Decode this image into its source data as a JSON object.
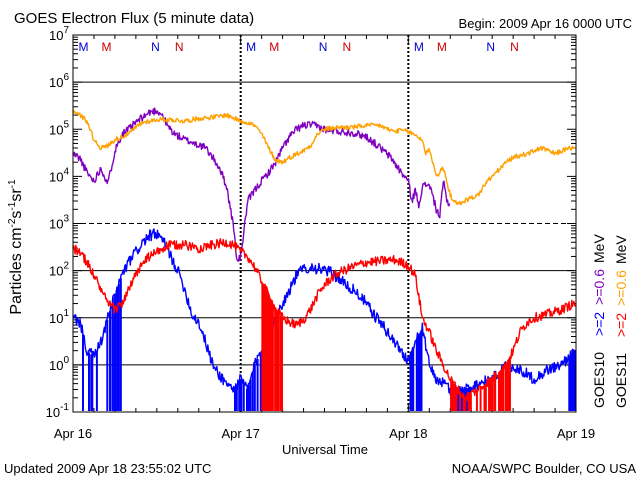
{
  "chart_data": {
    "type": "line",
    "title": "GOES Electron Flux (5 minute data)",
    "begin_label": "Begin: 2009 Apr 16 0000 UTC",
    "xlabel": "Universal Time",
    "ylabel": "Particles cm⁻²s⁻¹sr⁻¹",
    "ylabel_parts": {
      "base": "Particles cm",
      "sup1": "-2",
      "mid": "s",
      "sup2": "-1",
      "mid2": "sr",
      "sup3": "-1"
    },
    "yscale": "log",
    "ylim": [
      0.1,
      10000000
    ],
    "y_ticks": [
      {
        "value": 0.1,
        "base": "10",
        "exp": "-1"
      },
      {
        "value": 1,
        "base": "10",
        "exp": "0"
      },
      {
        "value": 10,
        "base": "10",
        "exp": "1"
      },
      {
        "value": 100,
        "base": "10",
        "exp": "2"
      },
      {
        "value": 1000,
        "base": "10",
        "exp": "3"
      },
      {
        "value": 10000,
        "base": "10",
        "exp": "4"
      },
      {
        "value": 100000,
        "base": "10",
        "exp": "5"
      },
      {
        "value": 1000000,
        "base": "10",
        "exp": "6"
      },
      {
        "value": 10000000,
        "base": "10",
        "exp": "7"
      }
    ],
    "xlim": [
      0,
      72
    ],
    "x_unit": "hours since 2009 Apr 16 0000 UTC",
    "x_ticks": [
      {
        "value": 0,
        "label": "Apr 16"
      },
      {
        "value": 24,
        "label": "Apr 17"
      },
      {
        "value": 48,
        "label": "Apr 18"
      },
      {
        "value": 72,
        "label": "Apr 19"
      }
    ],
    "grid": {
      "solid": [
        1,
        10,
        100,
        1000000
      ],
      "dashed": [
        1000
      ]
    },
    "day_boundaries": [
      24,
      48
    ],
    "markers": [
      {
        "x": 1.5,
        "label": "M",
        "color": "#0000cc"
      },
      {
        "x": 4.8,
        "label": "M",
        "color": "#cc0000"
      },
      {
        "x": 11.8,
        "label": "N",
        "color": "#0000cc"
      },
      {
        "x": 15.2,
        "label": "N",
        "color": "#cc0000"
      },
      {
        "x": 25.5,
        "label": "M",
        "color": "#0000cc"
      },
      {
        "x": 28.8,
        "label": "M",
        "color": "#cc0000"
      },
      {
        "x": 35.8,
        "label": "N",
        "color": "#0000cc"
      },
      {
        "x": 39.2,
        "label": "N",
        "color": "#cc0000"
      },
      {
        "x": 49.5,
        "label": "M",
        "color": "#0000cc"
      },
      {
        "x": 52.8,
        "label": "M",
        "color": "#cc0000"
      },
      {
        "x": 59.8,
        "label": "N",
        "color": "#0000cc"
      },
      {
        "x": 63.2,
        "label": "N",
        "color": "#cc0000"
      }
    ],
    "legend": {
      "position": "right",
      "columns": [
        {
          "satellite": "GOES10",
          "entries": [
            {
              "text": ">=2",
              "color": "#0000ff"
            },
            {
              "text": ">=0.6",
              "color": "#8000c0"
            }
          ],
          "unit": "MeV"
        },
        {
          "satellite": "GOES11",
          "entries": [
            {
              "text": ">=2",
              "color": "#ff0000"
            },
            {
              "text": ">=0.6",
              "color": "#ffa000"
            }
          ],
          "unit": "MeV"
        }
      ]
    },
    "series": [
      {
        "name": "GOES10 >=0.6 MeV",
        "color": "#8000c0",
        "noise": 0.08,
        "points": [
          [
            0,
            30000
          ],
          [
            1,
            24000
          ],
          [
            2,
            12000
          ],
          [
            3,
            8000
          ],
          [
            4,
            15000
          ],
          [
            5,
            7000
          ],
          [
            6,
            35000
          ],
          [
            7,
            80000
          ],
          [
            8,
            100000
          ],
          [
            9,
            140000
          ],
          [
            10,
            180000
          ],
          [
            11,
            230000
          ],
          [
            12,
            250000
          ],
          [
            12.8,
            200000
          ],
          [
            13.5,
            120000
          ],
          [
            14.5,
            80000
          ],
          [
            16,
            60000
          ],
          [
            17.5,
            50000
          ],
          [
            19,
            40000
          ],
          [
            20,
            25000
          ],
          [
            21,
            15000
          ],
          [
            22,
            6000
          ],
          [
            23,
            800
          ],
          [
            23.5,
            150
          ],
          [
            24,
            200
          ],
          [
            25,
            3000
          ],
          [
            26,
            5000
          ],
          [
            27,
            8000
          ],
          [
            28,
            12000
          ],
          [
            29,
            20000
          ],
          [
            30,
            40000
          ],
          [
            31,
            70000
          ],
          [
            32,
            100000
          ],
          [
            33,
            120000
          ],
          [
            34,
            125000
          ],
          [
            35,
            115000
          ],
          [
            36,
            100000
          ],
          [
            38,
            90000
          ],
          [
            40,
            85000
          ],
          [
            42,
            70000
          ],
          [
            44,
            40000
          ],
          [
            45.5,
            25000
          ],
          [
            47,
            12000
          ],
          [
            48,
            8000
          ],
          [
            48.5,
            3000
          ],
          [
            49,
            5000
          ],
          [
            49.5,
            2500
          ],
          [
            50,
            6000
          ],
          [
            51,
            7000
          ],
          [
            52,
            2000
          ],
          [
            52.5,
            1400
          ],
          [
            53,
            8000
          ],
          [
            53.5,
            3000
          ],
          [
            54,
            2500
          ]
        ]
      },
      {
        "name": "GOES11 >=0.6 MeV",
        "color": "#ffa000",
        "noise": 0.05,
        "points": [
          [
            0,
            250000
          ],
          [
            1,
            200000
          ],
          [
            2,
            150000
          ],
          [
            3,
            60000
          ],
          [
            4,
            40000
          ],
          [
            5,
            45000
          ],
          [
            6,
            60000
          ],
          [
            7,
            70000
          ],
          [
            8,
            80000
          ],
          [
            9,
            110000
          ],
          [
            10,
            140000
          ],
          [
            12,
            160000
          ],
          [
            14,
            160000
          ],
          [
            16,
            150000
          ],
          [
            18,
            170000
          ],
          [
            20,
            180000
          ],
          [
            22,
            200000
          ],
          [
            24,
            150000
          ],
          [
            25,
            140000
          ],
          [
            26,
            120000
          ],
          [
            27,
            80000
          ],
          [
            28,
            40000
          ],
          [
            29,
            22000
          ],
          [
            30,
            20000
          ],
          [
            31,
            25000
          ],
          [
            32,
            30000
          ],
          [
            33,
            35000
          ],
          [
            34,
            45000
          ],
          [
            35,
            80000
          ],
          [
            36,
            100000
          ],
          [
            38,
            110000
          ],
          [
            40,
            110000
          ],
          [
            42,
            120000
          ],
          [
            44,
            120000
          ],
          [
            45,
            100000
          ],
          [
            46,
            90000
          ],
          [
            47,
            95000
          ],
          [
            47.9,
            90000
          ],
          [
            49,
            75000
          ],
          [
            50,
            60000
          ],
          [
            50.5,
            30000
          ],
          [
            51,
            40000
          ],
          [
            52,
            10000
          ],
          [
            53,
            15000
          ],
          [
            54,
            4000
          ],
          [
            55,
            2500
          ],
          [
            56,
            3000
          ],
          [
            57,
            3500
          ],
          [
            58,
            4000
          ],
          [
            59,
            7000
          ],
          [
            60,
            10000
          ],
          [
            61,
            14000
          ],
          [
            62,
            20000
          ],
          [
            63,
            25000
          ],
          [
            64,
            28000
          ],
          [
            65,
            30000
          ],
          [
            66,
            35000
          ],
          [
            67,
            40000
          ],
          [
            68,
            35000
          ],
          [
            69,
            30000
          ],
          [
            70,
            35000
          ],
          [
            71,
            40000
          ],
          [
            72,
            38000
          ]
        ]
      },
      {
        "name": "GOES10 >=2 MeV",
        "color": "#0000ff",
        "noise": 0.12,
        "dropouts": [
          [
            1,
            7
          ],
          [
            23,
            27
          ],
          [
            47.8,
            50
          ],
          [
            54,
            57
          ],
          [
            71,
            72
          ]
        ],
        "dropout_count": 85,
        "points": [
          [
            0,
            10
          ],
          [
            1,
            8
          ],
          [
            2,
            2
          ],
          [
            3,
            1.5
          ],
          [
            4,
            3
          ],
          [
            5,
            10
          ],
          [
            6,
            30
          ],
          [
            7,
            80
          ],
          [
            8,
            150
          ],
          [
            9,
            250
          ],
          [
            10,
            400
          ],
          [
            11,
            550
          ],
          [
            12,
            600
          ],
          [
            13,
            400
          ],
          [
            14,
            200
          ],
          [
            15,
            100
          ],
          [
            16,
            40
          ],
          [
            17,
            12
          ],
          [
            18,
            8
          ],
          [
            19,
            3
          ],
          [
            20,
            1
          ],
          [
            21,
            0.6
          ],
          [
            22,
            0.4
          ],
          [
            23,
            0.3
          ],
          [
            24,
            0.5
          ],
          [
            25,
            0.3
          ],
          [
            26,
            1
          ],
          [
            27,
            2
          ],
          [
            28,
            5
          ],
          [
            29,
            10
          ],
          [
            30,
            20
          ],
          [
            31,
            40
          ],
          [
            32,
            80
          ],
          [
            33,
            110
          ],
          [
            34,
            120
          ],
          [
            35,
            110
          ],
          [
            36,
            100
          ],
          [
            37,
            90
          ],
          [
            38,
            70
          ],
          [
            39,
            50
          ],
          [
            40,
            40
          ],
          [
            41,
            30
          ],
          [
            42,
            20
          ],
          [
            43,
            12
          ],
          [
            44,
            8
          ],
          [
            45,
            5
          ],
          [
            46,
            3
          ],
          [
            47,
            2
          ],
          [
            48,
            1.2
          ],
          [
            49,
            3
          ],
          [
            50,
            6
          ],
          [
            51,
            1
          ],
          [
            52,
            0.5
          ],
          [
            53,
            0.4
          ],
          [
            54,
            0.3
          ],
          [
            56,
            0.3
          ],
          [
            58,
            0.4
          ],
          [
            60,
            0.5
          ],
          [
            62,
            1
          ],
          [
            64,
            0.8
          ],
          [
            66,
            0.5
          ],
          [
            68,
            0.8
          ],
          [
            70,
            1
          ],
          [
            71,
            1.5
          ],
          [
            72,
            2
          ]
        ]
      },
      {
        "name": "GOES11 >=2 MeV",
        "color": "#ff0000",
        "noise": 0.1,
        "dropouts": [
          [
            27,
            30
          ],
          [
            54,
            63
          ]
        ],
        "dropout_count": 75,
        "points": [
          [
            0,
            300
          ],
          [
            1,
            250
          ],
          [
            2,
            150
          ],
          [
            3,
            80
          ],
          [
            4,
            40
          ],
          [
            5,
            20
          ],
          [
            6,
            15
          ],
          [
            7,
            20
          ],
          [
            8,
            40
          ],
          [
            9,
            80
          ],
          [
            10,
            150
          ],
          [
            11,
            200
          ],
          [
            12,
            250
          ],
          [
            13,
            300
          ],
          [
            14,
            350
          ],
          [
            16,
            350
          ],
          [
            18,
            300
          ],
          [
            20,
            350
          ],
          [
            22,
            400
          ],
          [
            23,
            350
          ],
          [
            24,
            250
          ],
          [
            25,
            200
          ],
          [
            26,
            120
          ],
          [
            27,
            60
          ],
          [
            28,
            30
          ],
          [
            29,
            15
          ],
          [
            30,
            10
          ],
          [
            31,
            8
          ],
          [
            32,
            7
          ],
          [
            33,
            9
          ],
          [
            34,
            15
          ],
          [
            35,
            30
          ],
          [
            36,
            50
          ],
          [
            37,
            70
          ],
          [
            38,
            90
          ],
          [
            40,
            120
          ],
          [
            42,
            150
          ],
          [
            44,
            160
          ],
          [
            46,
            170
          ],
          [
            47,
            150
          ],
          [
            48,
            130
          ],
          [
            49,
            80
          ],
          [
            50,
            10
          ],
          [
            51,
            5
          ],
          [
            52,
            2
          ],
          [
            53,
            1
          ],
          [
            54,
            0.5
          ],
          [
            56,
            0.2
          ],
          [
            58,
            0.3
          ],
          [
            60,
            0.5
          ],
          [
            62,
            1
          ],
          [
            63,
            2
          ],
          [
            64,
            5
          ],
          [
            65,
            8
          ],
          [
            66,
            10
          ],
          [
            68,
            12
          ],
          [
            70,
            15
          ],
          [
            71,
            18
          ],
          [
            72,
            20
          ]
        ]
      }
    ]
  },
  "footer": {
    "updated": "Updated 2009 Apr 18 23:55:02 UTC",
    "source": "NOAA/SWPC Boulder, CO USA"
  }
}
